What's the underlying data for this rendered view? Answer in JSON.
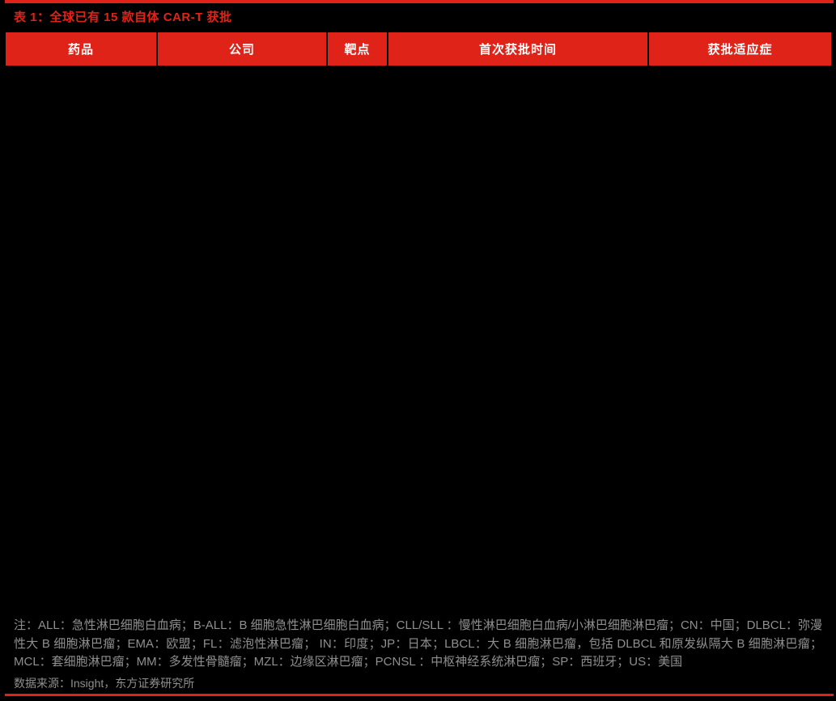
{
  "colors": {
    "accent_red": "#e02319",
    "background": "#000000",
    "header_text": "#ffffff",
    "note_text": "#8f8f8f"
  },
  "table": {
    "title": "表 1：全球已有 15 款自体 CAR-T 获批",
    "columns": [
      {
        "label": "药品"
      },
      {
        "label": "公司"
      },
      {
        "label": "靶点"
      },
      {
        "label": "首次获批时间"
      },
      {
        "label": "获批适应症"
      }
    ],
    "rows": []
  },
  "notes": {
    "footnote": "注：ALL：急性淋巴细胞白血病；B-ALL：B 细胞急性淋巴细胞白血病；CLL/SLL ：慢性淋巴细胞白血病/小淋巴细胞淋巴瘤；CN：中国；DLBCL：弥漫性大 B 细胞淋巴瘤；EMA：欧盟；FL：滤泡性淋巴瘤； IN：印度；JP：日本；LBCL：大 B 细胞淋巴瘤，包括 DLBCL 和原发纵隔大 B 细胞淋巴瘤；MCL：套细胞淋巴瘤；MM：多发性骨髓瘤；MZL：边缘区淋巴瘤；PCNSL ：中枢神经系统淋巴瘤；SP：西班牙；US：美国",
    "source": "数据来源：Insight，东方证券研究所"
  }
}
